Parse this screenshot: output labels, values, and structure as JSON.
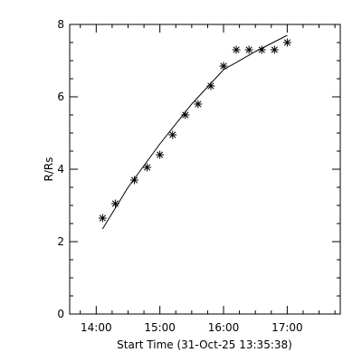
{
  "chart_data": {
    "type": "scatter",
    "xlabel": "Start Time (31-Oct-25 13:35:38)",
    "ylabel": "R/Rs",
    "xlim": [
      "13:35",
      "17:50"
    ],
    "ylim": [
      0,
      8
    ],
    "x_ticks": [
      "14:00",
      "15:00",
      "16:00",
      "17:00"
    ],
    "y_ticks": [
      0,
      2,
      4,
      6,
      8
    ],
    "grid": false,
    "legend": "none",
    "series": [
      {
        "kind": "points",
        "marker": "asterisk",
        "x": [
          "14:06",
          "14:18",
          "14:36",
          "14:48",
          "15:00",
          "15:12",
          "15:24",
          "15:36",
          "15:48",
          "16:00",
          "16:12",
          "16:24",
          "16:36",
          "16:48",
          "17:00"
        ],
        "y": [
          2.65,
          3.05,
          3.7,
          4.05,
          4.4,
          4.95,
          5.5,
          5.8,
          6.3,
          6.85,
          7.3,
          7.3,
          7.3,
          7.3,
          7.5
        ]
      },
      {
        "kind": "line",
        "x": [
          "14:06",
          "14:30",
          "15:00",
          "15:30",
          "16:00",
          "16:30",
          "17:00"
        ],
        "y": [
          2.35,
          3.5,
          4.7,
          5.8,
          6.75,
          7.25,
          7.7
        ]
      }
    ],
    "colors": {
      "foreground": "#000000",
      "background": "#ffffff"
    }
  }
}
